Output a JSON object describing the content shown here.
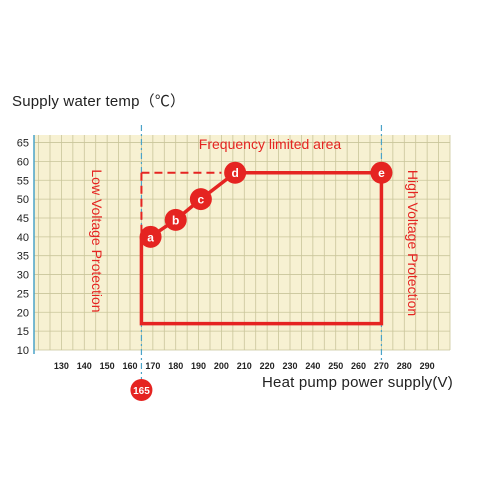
{
  "chart_data": {
    "type": "line",
    "ylabel": "Supply water temp（℃）",
    "xlabel": "Heat pump power supply(V)",
    "y_ticks": [
      "10",
      "15",
      "20",
      "25",
      "30",
      "35",
      "40",
      "45",
      "50",
      "55",
      "60",
      "65"
    ],
    "x_ticks": [
      "130",
      "140",
      "150",
      "160",
      "170",
      "180",
      "190",
      "200",
      "210",
      "220",
      "230",
      "240",
      "250",
      "260",
      "270",
      "280",
      "290"
    ],
    "ylim": [
      10,
      67
    ],
    "xlim": [
      118,
      300
    ],
    "grid": true,
    "marker_165": "165",
    "area_label": "Frequency limited area",
    "low_voltage_label": "Low Voltage Protection",
    "high_voltage_label": "High Voltage Protection",
    "operating_region": {
      "x": [
        165,
        270
      ],
      "y": [
        17,
        57
      ]
    },
    "frequency_limit_line": {
      "y": 57,
      "x_start": 165,
      "x_end": 200
    },
    "low_voltage_limit_x": 165,
    "high_voltage_limit_x": 270,
    "points": [
      {
        "label": "a",
        "x": 169,
        "y": 40
      },
      {
        "label": "b",
        "x": 180,
        "y": 44.5
      },
      {
        "label": "c",
        "x": 191,
        "y": 50
      },
      {
        "label": "d",
        "x": 206,
        "y": 57
      },
      {
        "label": "e",
        "x": 270,
        "y": 57
      }
    ],
    "colors": {
      "main": "#e52421",
      "guide": "#4aa3c8",
      "grid": "#c9c59a",
      "background": "#f7f1d2",
      "text": "#222222"
    }
  }
}
